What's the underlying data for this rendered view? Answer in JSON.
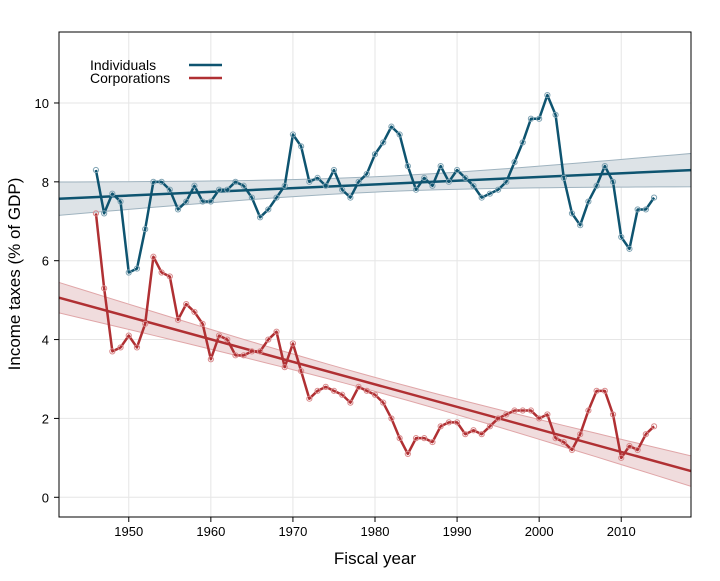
{
  "chart_data": {
    "type": "line",
    "title": "",
    "xlabel": "Fiscal year",
    "ylabel": "Income taxes (% of GDP)",
    "xlim": [
      1941.5,
      2018.5
    ],
    "ylim": [
      -0.5,
      11.8
    ],
    "xticks": [
      1950,
      1960,
      1970,
      1980,
      1990,
      2000,
      2010
    ],
    "yticks": [
      0,
      2,
      4,
      6,
      8,
      10
    ],
    "grid": true,
    "legend": "top-left",
    "trend_lines": "linear fit with confidence band per series",
    "x": [
      1946,
      1947,
      1948,
      1949,
      1950,
      1951,
      1952,
      1953,
      1954,
      1955,
      1956,
      1957,
      1958,
      1959,
      1960,
      1961,
      1962,
      1963,
      1964,
      1965,
      1966,
      1967,
      1968,
      1969,
      1970,
      1971,
      1972,
      1973,
      1974,
      1975,
      1976,
      1977,
      1978,
      1979,
      1980,
      1981,
      1982,
      1983,
      1984,
      1985,
      1986,
      1987,
      1988,
      1989,
      1990,
      1991,
      1992,
      1993,
      1994,
      1995,
      1996,
      1997,
      1998,
      1999,
      2000,
      2001,
      2002,
      2003,
      2004,
      2005,
      2006,
      2007,
      2008,
      2009,
      2010,
      2011,
      2012,
      2013,
      2014
    ],
    "series": [
      {
        "name": "Individuals",
        "color": "#0e5470",
        "values": [
          8.3,
          7.2,
          7.7,
          7.5,
          5.7,
          5.8,
          6.8,
          8.0,
          8.0,
          7.8,
          7.3,
          7.5,
          7.9,
          7.5,
          7.5,
          7.8,
          7.8,
          8.0,
          7.9,
          7.6,
          7.1,
          7.3,
          7.6,
          7.9,
          9.2,
          8.9,
          8.0,
          8.1,
          7.9,
          8.3,
          7.8,
          7.6,
          8.0,
          8.2,
          8.7,
          9.0,
          9.4,
          9.2,
          8.4,
          7.8,
          8.1,
          7.9,
          8.4,
          8.0,
          8.3,
          8.1,
          7.9,
          7.6,
          7.7,
          7.8,
          8.0,
          8.5,
          9.0,
          9.6,
          9.6,
          10.2,
          9.7,
          8.1,
          7.2,
          6.9,
          7.5,
          7.9,
          8.4,
          8.0,
          6.6,
          6.3,
          7.3,
          7.3,
          7.6
        ]
      },
      {
        "name": "Corporations",
        "color": "#b03033",
        "values": [
          7.2,
          5.3,
          3.7,
          3.8,
          4.1,
          3.8,
          4.4,
          6.1,
          5.7,
          5.6,
          4.5,
          4.9,
          4.7,
          4.4,
          3.5,
          4.1,
          4.0,
          3.6,
          3.6,
          3.7,
          3.7,
          4.0,
          4.2,
          3.3,
          3.9,
          3.2,
          2.5,
          2.7,
          2.8,
          2.7,
          2.6,
          2.4,
          2.8,
          2.7,
          2.6,
          2.4,
          2.0,
          1.5,
          1.1,
          1.5,
          1.5,
          1.4,
          1.8,
          1.9,
          1.9,
          1.6,
          1.7,
          1.6,
          1.8,
          2.0,
          2.1,
          2.2,
          2.2,
          2.2,
          2.0,
          2.1,
          1.5,
          1.4,
          1.2,
          1.6,
          2.2,
          2.7,
          2.7,
          2.1,
          1.0,
          1.3,
          1.2,
          1.6,
          1.8
        ]
      }
    ]
  }
}
